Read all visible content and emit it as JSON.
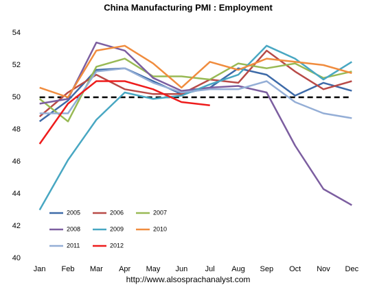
{
  "chart_data": {
    "type": "line",
    "title": "China Manufacturing PMI : Employment",
    "source": "http://www.alsosprachanalyst.com",
    "categories": [
      "Jan",
      "Feb",
      "Mar",
      "Apr",
      "May",
      "Jun",
      "Jul",
      "Aug",
      "Sep",
      "Oct",
      "Nov",
      "Dec"
    ],
    "ylim": [
      40,
      54
    ],
    "yticks": [
      40,
      42,
      44,
      46,
      48,
      50,
      52,
      54
    ],
    "reference": 50,
    "grid": false,
    "legend": "lower-left",
    "series": [
      {
        "name": "2005",
        "color": "#3d6aa8",
        "values": [
          48.5,
          49.8,
          51.7,
          51.8,
          51.0,
          50.2,
          50.6,
          51.8,
          51.4,
          50.1,
          50.9,
          50.4
        ]
      },
      {
        "name": "2006",
        "color": "#b84a47",
        "values": [
          48.8,
          50.3,
          51.4,
          50.5,
          50.2,
          50.2,
          51.1,
          50.9,
          52.9,
          51.6,
          50.5,
          51.0
        ]
      },
      {
        "name": "2007",
        "color": "#98b954",
        "values": [
          49.9,
          48.5,
          51.9,
          52.4,
          51.3,
          51.3,
          51.1,
          52.1,
          51.8,
          52.1,
          51.2,
          51.6
        ]
      },
      {
        "name": "2008",
        "color": "#7c5ea0",
        "values": [
          49.6,
          49.9,
          53.4,
          52.9,
          51.2,
          50.4,
          50.6,
          50.7,
          50.3,
          47.0,
          44.3,
          43.3
        ]
      },
      {
        "name": "2009",
        "color": "#48a7c2",
        "values": [
          43.0,
          46.1,
          48.6,
          50.3,
          49.9,
          50.1,
          50.8,
          51.4,
          53.2,
          52.4,
          51.1,
          52.2
        ]
      },
      {
        "name": "2010",
        "color": "#f08c3e",
        "values": [
          50.6,
          50.0,
          52.9,
          53.2,
          52.1,
          50.6,
          52.2,
          51.7,
          52.4,
          52.2,
          52.0,
          51.5
        ]
      },
      {
        "name": "2011",
        "color": "#94aed6",
        "values": [
          49.0,
          49.0,
          51.6,
          51.8,
          50.9,
          50.3,
          50.5,
          50.5,
          51.0,
          49.7,
          49.0,
          48.7
        ]
      },
      {
        "name": "2012",
        "color": "#ee1c1c",
        "values": [
          47.1,
          49.6,
          51.0,
          51.0,
          50.5,
          49.7,
          49.5,
          null,
          null,
          null,
          null,
          null
        ]
      }
    ]
  }
}
